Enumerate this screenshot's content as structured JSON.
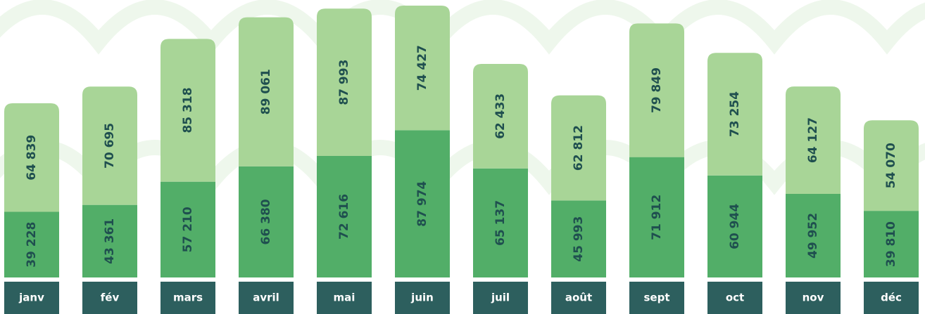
{
  "chart_data": {
    "type": "bar",
    "stacked": true,
    "categories": [
      "janv",
      "fév",
      "mars",
      "avril",
      "mai",
      "juin",
      "juil",
      "août",
      "sept",
      "oct",
      "nov",
      "déc"
    ],
    "series": [
      {
        "color": "#52ae68",
        "values": [
          39228,
          43361,
          57210,
          66380,
          72616,
          87974,
          65137,
          45993,
          71912,
          60944,
          49952,
          39810
        ],
        "value_labels": [
          "39 228",
          "43 361",
          "57 210",
          "66 380",
          "72 616",
          "87 974",
          "65 137",
          "45 993",
          "71 912",
          "60 944",
          "49 952",
          "39 810"
        ]
      },
      {
        "color": "#a8d597",
        "values": [
          64839,
          70695,
          85318,
          89061,
          87993,
          74427,
          62433,
          62812,
          79849,
          73254,
          64127,
          54070
        ],
        "value_labels": [
          "64 839",
          "70 695",
          "85 318",
          "89 061",
          "87 993",
          "74 427",
          "62 433",
          "62 812",
          "79 849",
          "73 254",
          "64 127",
          "54 070"
        ]
      }
    ],
    "category_box_color": "#2d5f5e"
  }
}
